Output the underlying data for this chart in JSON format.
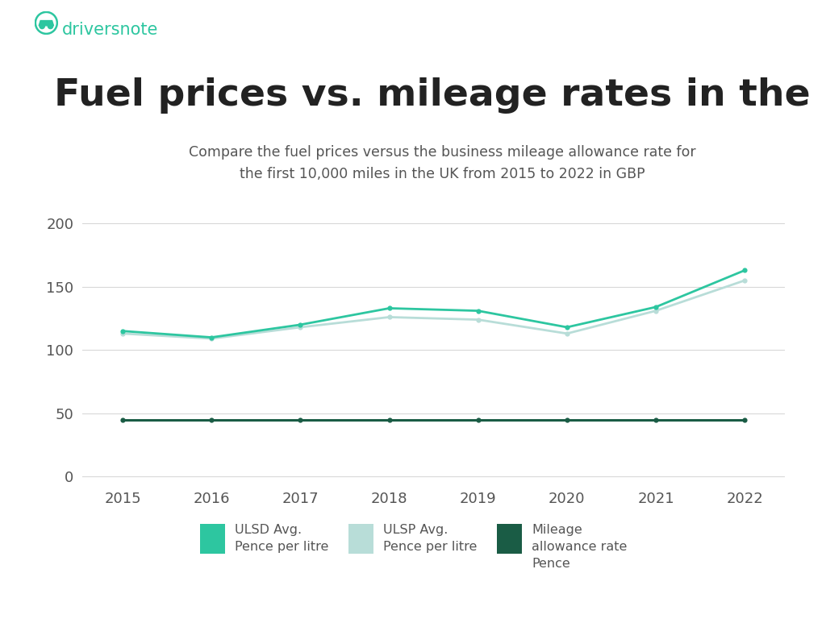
{
  "title": "Fuel prices vs. mileage rates in the UK",
  "subtitle": "Compare the fuel prices versus the business mileage allowance rate for\nthe first 10,000 miles in the UK from 2015 to 2022 in GBP",
  "years": [
    2015,
    2016,
    2017,
    2018,
    2019,
    2020,
    2021,
    2022
  ],
  "ulsd": [
    115,
    110,
    120,
    133,
    131,
    118,
    134,
    163
  ],
  "ulsp": [
    113,
    109,
    118,
    126,
    124,
    113,
    131,
    155
  ],
  "mileage": [
    45,
    45,
    45,
    45,
    45,
    45,
    45,
    45
  ],
  "ulsd_color": "#2DC6A0",
  "ulsp_color": "#B8DDD8",
  "mileage_color": "#1A5C45",
  "yticks": [
    0,
    50,
    100,
    150,
    200
  ],
  "ylim": [
    -5,
    225
  ],
  "background_color": "#ffffff",
  "text_color": "#555555",
  "grid_color": "#d8d8d8",
  "driversnote_color": "#2DC6A0",
  "legend_labels": [
    "ULSD Avg.\nPence per litre",
    "ULSP Avg.\nPence per litre",
    "Mileage\nallowance rate\nPence"
  ],
  "title_fontsize": 34,
  "subtitle_fontsize": 12.5,
  "axis_fontsize": 13,
  "legend_fontsize": 11.5,
  "brand_fontsize": 15
}
